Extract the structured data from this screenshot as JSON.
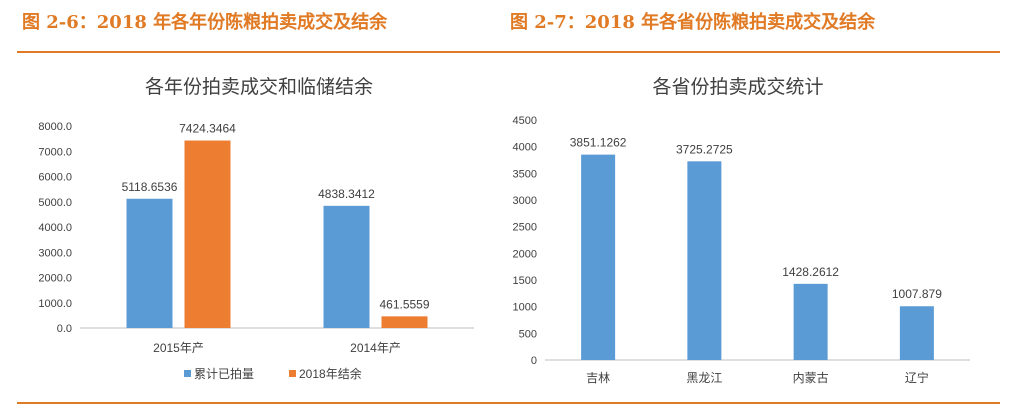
{
  "header": {
    "left_title": "图 2-6：2018 年各年份陈粮拍卖成交及结余",
    "right_title": "图 2-7：2018 年各省份陈粮拍卖成交及结余"
  },
  "colors": {
    "accent": "#e07a24",
    "blue": "#5b9bd5",
    "orange": "#ed7d31"
  },
  "chart_data": [
    {
      "type": "bar",
      "title": "各年份拍卖成交和临储结余",
      "categories": [
        "2015年产",
        "2014年产"
      ],
      "series": [
        {
          "name": "累计已拍量",
          "values": [
            5118.6536,
            4838.3412
          ],
          "labels": [
            "5118.6536",
            "4838.3412"
          ],
          "color": "#5b9bd5"
        },
        {
          "name": "2018年结余",
          "values": [
            7424.3464,
            461.5559
          ],
          "labels": [
            "7424.3464",
            "461.5559"
          ],
          "color": "#ed7d31"
        }
      ],
      "ylim": [
        0,
        8000
      ],
      "yticks": [
        0,
        1000,
        2000,
        3000,
        4000,
        5000,
        6000,
        7000,
        8000
      ],
      "ytick_labels": [
        "0.0",
        "1000.0",
        "2000.0",
        "3000.0",
        "4000.0",
        "5000.0",
        "6000.0",
        "7000.0",
        "8000.0"
      ],
      "legend": "bottom",
      "grid": false
    },
    {
      "type": "bar",
      "title": "各省份拍卖成交统计",
      "categories": [
        "吉林",
        "黑龙江",
        "内蒙古",
        "辽宁"
      ],
      "series": [
        {
          "values": [
            3851.1262,
            3725.2725,
            1428.2612,
            1007.879
          ],
          "labels": [
            "3851.1262",
            "3725.2725",
            "1428.2612",
            "1007.879"
          ],
          "color": "#5b9bd5"
        }
      ],
      "ylim": [
        0,
        4500
      ],
      "yticks": [
        0,
        500,
        1000,
        1500,
        2000,
        2500,
        3000,
        3500,
        4000,
        4500
      ],
      "ytick_labels": [
        "0",
        "500",
        "1000",
        "1500",
        "2000",
        "2500",
        "3000",
        "3500",
        "4000",
        "4500"
      ],
      "legend": "none",
      "grid": false
    }
  ]
}
